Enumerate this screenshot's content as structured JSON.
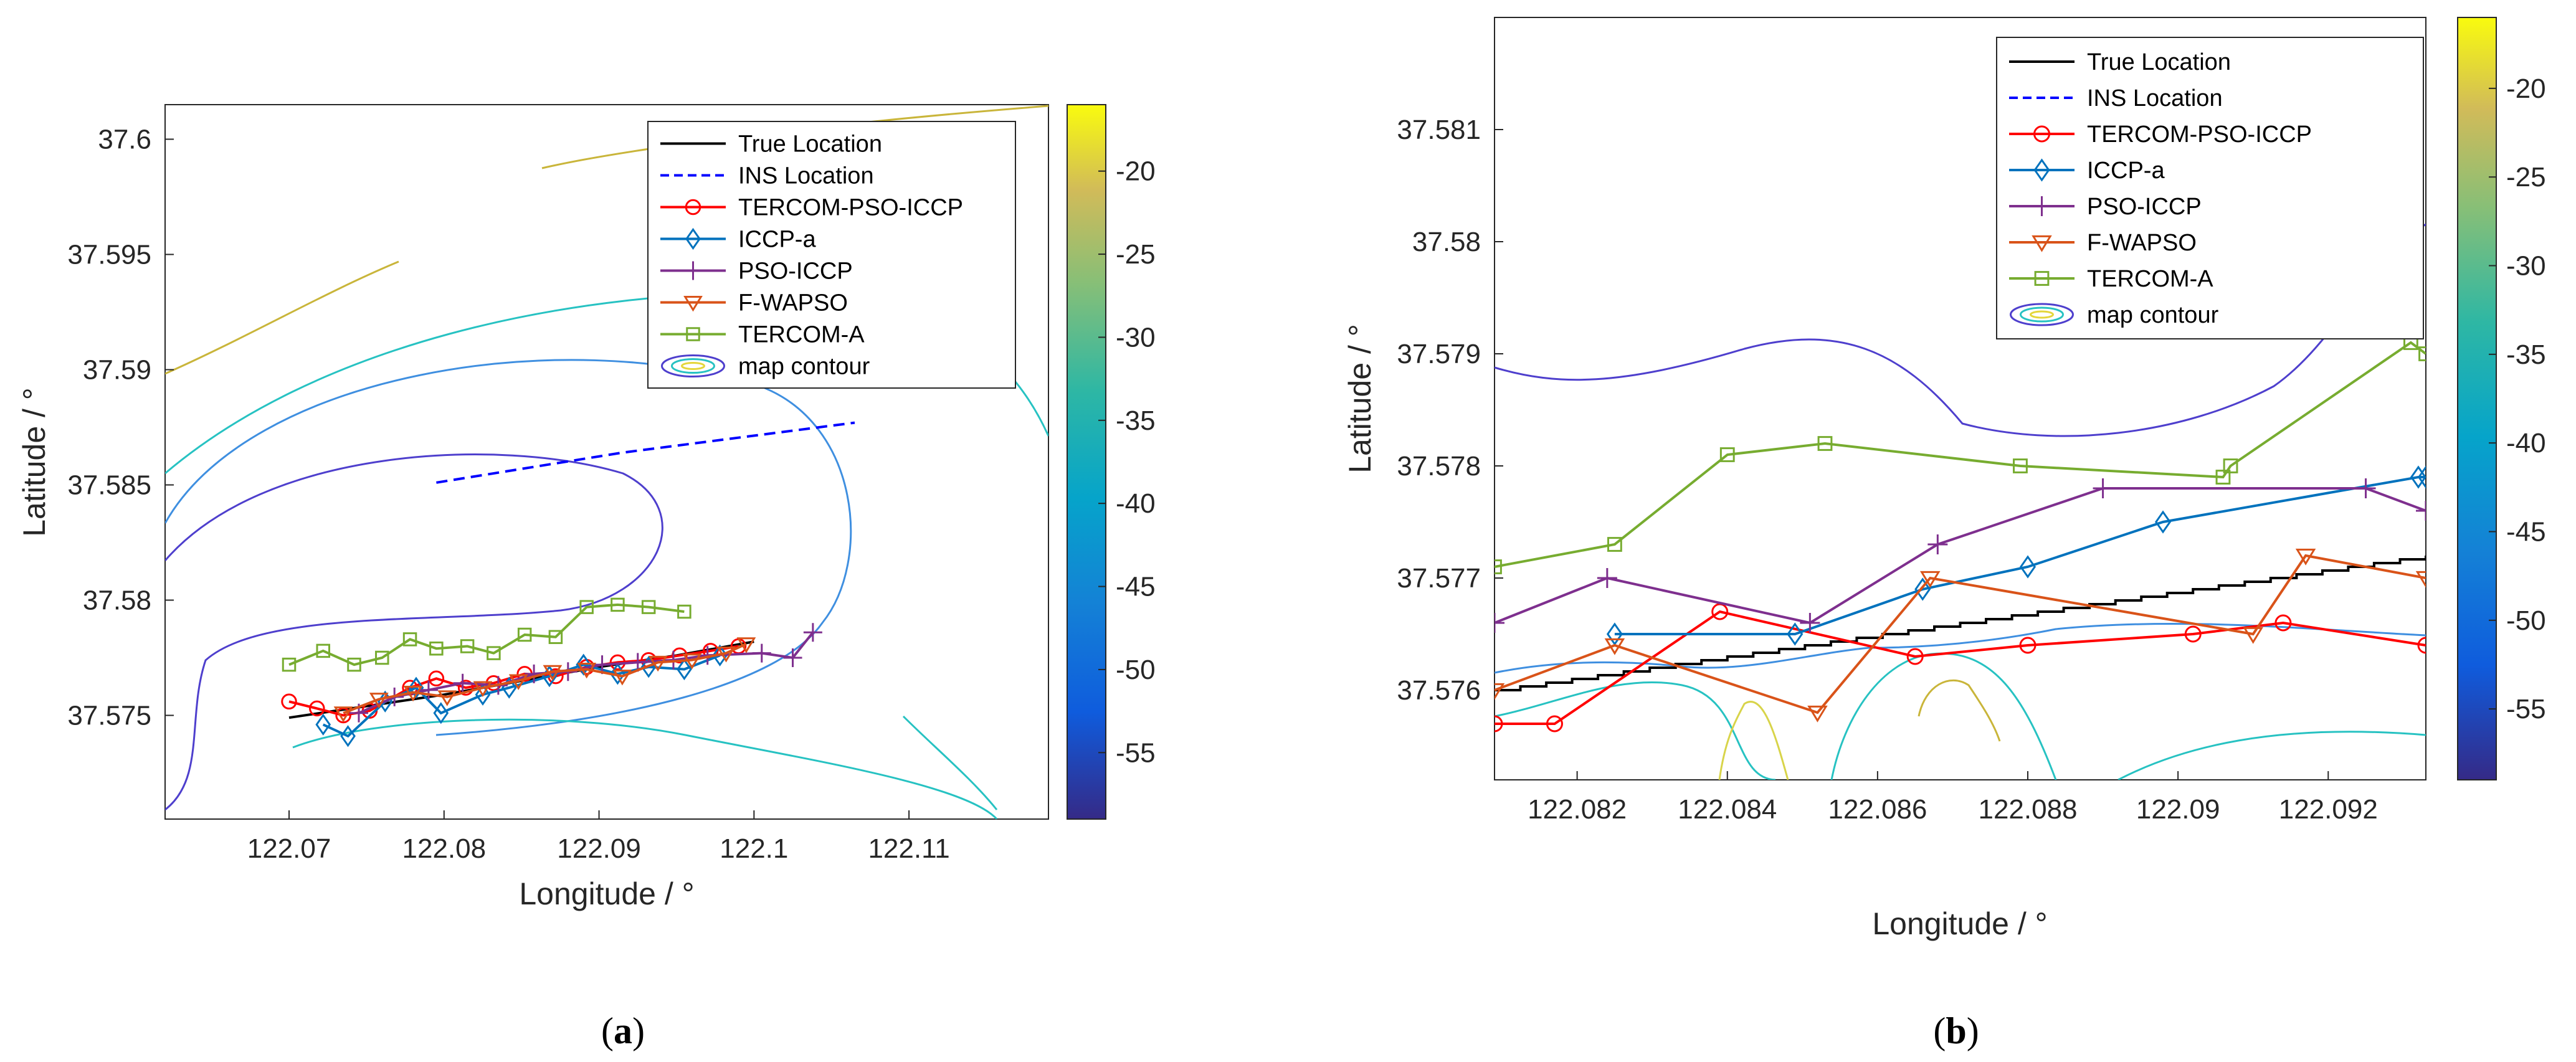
{
  "chart_data": [
    {
      "type": "line",
      "panel": "a",
      "caption_open": "(",
      "caption_letter": "a",
      "caption_close": ")",
      "xlabel": "Longitude / °",
      "ylabel": "Latitude / °",
      "xlim": [
        122.062,
        122.119
      ],
      "ylim": [
        37.5705,
        37.6015
      ],
      "xticks": [
        122.07,
        122.08,
        122.09,
        122.1,
        122.11
      ],
      "xtick_labels": [
        "122.07",
        "122.08",
        "122.09",
        "122.1",
        "122.11"
      ],
      "yticks": [
        37.575,
        37.58,
        37.585,
        37.59,
        37.595,
        37.6
      ],
      "ytick_labels": [
        "37.575",
        "37.58",
        "37.585",
        "37.59",
        "37.595",
        "37.6"
      ],
      "legend_position": "top-right",
      "colorbar": {
        "range": [
          -59,
          -16
        ],
        "ticks": [
          -20,
          -25,
          -30,
          -35,
          -40,
          -45,
          -50,
          -55
        ],
        "tick_labels": [
          "-20",
          "-25",
          "-30",
          "-35",
          "-40",
          "-45",
          "-50",
          "-55"
        ]
      },
      "series": [
        {
          "name": "True Location",
          "style": "solid",
          "color": "#000000",
          "marker": "none",
          "x": [
            122.07,
            122.075,
            122.08,
            122.085,
            122.09,
            122.095,
            122.1
          ],
          "y": [
            37.5749,
            37.5754,
            37.5759,
            37.5765,
            37.5771,
            37.5776,
            37.5782
          ]
        },
        {
          "name": "INS Location",
          "style": "dashed",
          "color": "#0000ff",
          "marker": "none",
          "x": [
            122.0795,
            122.0915,
            122.1065
          ],
          "y": [
            37.5851,
            37.5864,
            37.5877
          ]
        },
        {
          "name": "TERCOM-PSO-ICCP",
          "style": "solid",
          "color": "#ff0000",
          "marker": "circle",
          "x": [
            122.07,
            122.0718,
            122.0735,
            122.0752,
            122.0778,
            122.0795,
            122.0814,
            122.0832,
            122.0852,
            122.0872,
            122.0892,
            122.0912,
            122.0932,
            122.0952,
            122.0972,
            122.099
          ],
          "y": [
            37.5756,
            37.5753,
            37.575,
            37.5752,
            37.5762,
            37.5766,
            37.5762,
            37.5764,
            37.5768,
            37.5767,
            37.5771,
            37.5773,
            37.5774,
            37.5776,
            37.5778,
            37.578
          ]
        },
        {
          "name": "ICCP-a",
          "style": "solid",
          "color": "#0072bd",
          "marker": "diamond",
          "x": [
            122.0722,
            122.0738,
            122.0762,
            122.0782,
            122.0798,
            122.0825,
            122.0842,
            122.0868,
            122.089,
            122.0912,
            122.0932,
            122.0955,
            122.0978
          ],
          "y": [
            37.5746,
            37.5741,
            37.5756,
            37.5762,
            37.5751,
            37.5759,
            37.5762,
            37.5767,
            37.5772,
            37.5768,
            37.5771,
            37.577,
            37.5776
          ]
        },
        {
          "name": "PSO-ICCP",
          "style": "solid",
          "color": "#7e2f8e",
          "marker": "plus",
          "x": [
            122.0745,
            122.0768,
            122.079,
            122.0812,
            122.0835,
            122.0858,
            122.088,
            122.0902,
            122.0925,
            122.0948,
            122.097,
            122.1005,
            122.1025,
            122.1038
          ],
          "y": [
            37.5751,
            37.5758,
            37.5761,
            37.5764,
            37.5763,
            37.5768,
            37.5769,
            37.5772,
            37.5773,
            37.5774,
            37.5776,
            37.5777,
            37.5775,
            37.5786
          ]
        },
        {
          "name": "F-WAPSO",
          "style": "solid",
          "color": "#d95319",
          "marker": "triangle-down",
          "x": [
            122.0735,
            122.0758,
            122.078,
            122.0802,
            122.0825,
            122.0848,
            122.087,
            122.0892,
            122.0915,
            122.0938,
            122.096,
            122.0982,
            122.0995
          ],
          "y": [
            37.5751,
            37.5757,
            37.576,
            37.5758,
            37.5762,
            37.5765,
            37.5769,
            37.577,
            37.5767,
            37.5773,
            37.5774,
            37.5777,
            37.5781
          ]
        },
        {
          "name": "TERCOM-A",
          "style": "solid",
          "color": "#77ac30",
          "marker": "square",
          "x": [
            122.07,
            122.0722,
            122.0742,
            122.076,
            122.0778,
            122.0795,
            122.0815,
            122.0832,
            122.0852,
            122.0872,
            122.0892,
            122.0912,
            122.0932,
            122.0955
          ],
          "y": [
            37.5772,
            37.5778,
            37.5772,
            37.5775,
            37.5783,
            37.5779,
            37.578,
            37.5777,
            37.5785,
            37.5784,
            37.5797,
            37.5798,
            37.5797,
            37.5795
          ]
        },
        {
          "name": "map contour",
          "style": "contour",
          "color": "#4e3fcd",
          "marker": "ellipse"
        }
      ]
    },
    {
      "type": "line",
      "panel": "b",
      "caption_open": "(",
      "caption_letter": "b",
      "caption_close": ")",
      "xlabel": "Longitude / °",
      "ylabel": "Latitude / °",
      "xlim": [
        122.0809,
        122.0933
      ],
      "ylim": [
        37.5752,
        37.582
      ],
      "xticks": [
        122.082,
        122.084,
        122.086,
        122.088,
        122.09,
        122.092
      ],
      "xtick_labels": [
        "122.082",
        "122.084",
        "122.086",
        "122.088",
        "122.09",
        "122.092"
      ],
      "yticks": [
        37.576,
        37.577,
        37.578,
        37.579,
        37.58,
        37.581
      ],
      "ytick_labels": [
        "37.576",
        "37.577",
        "37.578",
        "37.579",
        "37.58",
        "37.581"
      ],
      "legend_position": "top-right",
      "colorbar": {
        "range": [
          -59,
          -16
        ],
        "ticks": [
          -20,
          -25,
          -30,
          -35,
          -40,
          -45,
          -50,
          -55
        ],
        "tick_labels": [
          "-20",
          "-25",
          "-30",
          "-35",
          "-40",
          "-45",
          "-50",
          "-55"
        ]
      },
      "series": [
        {
          "name": "True Location",
          "style": "solid",
          "color": "#000000",
          "marker": "none",
          "x": [
            122.0809,
            122.0933
          ],
          "y": [
            37.576,
            37.5772
          ]
        },
        {
          "name": "INS Location",
          "style": "dashed",
          "color": "#0000ff",
          "marker": "none",
          "x": [],
          "y": []
        },
        {
          "name": "TERCOM-PSO-ICCP",
          "style": "solid",
          "color": "#ff0000",
          "marker": "circle",
          "x": [
            122.0809,
            122.0817,
            122.0839,
            122.0865,
            122.088,
            122.0902,
            122.0914,
            122.0933
          ],
          "y": [
            37.5757,
            37.5757,
            37.5767,
            37.5763,
            37.5764,
            37.5765,
            37.5766,
            37.5764
          ]
        },
        {
          "name": "ICCP-a",
          "style": "solid",
          "color": "#0072bd",
          "marker": "diamond",
          "x": [
            122.0825,
            122.0849,
            122.0866,
            122.088,
            122.0898,
            122.0932,
            122.0933
          ],
          "y": [
            37.5765,
            37.5765,
            37.5769,
            37.5771,
            37.5775,
            37.5779,
            37.5779
          ]
        },
        {
          "name": "PSO-ICCP",
          "style": "solid",
          "color": "#7e2f8e",
          "marker": "plus",
          "x": [
            122.0809,
            122.0824,
            122.0851,
            122.0868,
            122.089,
            122.0925,
            122.0933
          ],
          "y": [
            37.5766,
            37.577,
            37.5766,
            37.5773,
            37.5778,
            37.5778,
            37.5776
          ]
        },
        {
          "name": "F-WAPSO",
          "style": "solid",
          "color": "#d95319",
          "marker": "triangle-down",
          "x": [
            122.0809,
            122.0825,
            122.0852,
            122.0867,
            122.091,
            122.0917,
            122.0933
          ],
          "y": [
            37.576,
            37.5764,
            37.5758,
            37.577,
            37.5765,
            37.5772,
            37.577
          ]
        },
        {
          "name": "TERCOM-A",
          "style": "solid",
          "color": "#77ac30",
          "marker": "square",
          "x": [
            122.0809,
            122.0825,
            122.084,
            122.0853,
            122.0879,
            122.0906,
            122.0907,
            122.0931,
            122.0933
          ],
          "y": [
            37.5771,
            37.5773,
            37.5781,
            37.5782,
            37.578,
            37.5779,
            37.578,
            37.5791,
            37.579
          ]
        },
        {
          "name": "map contour",
          "style": "contour",
          "color": "#4e3fcd",
          "marker": "ellipse"
        }
      ]
    }
  ]
}
